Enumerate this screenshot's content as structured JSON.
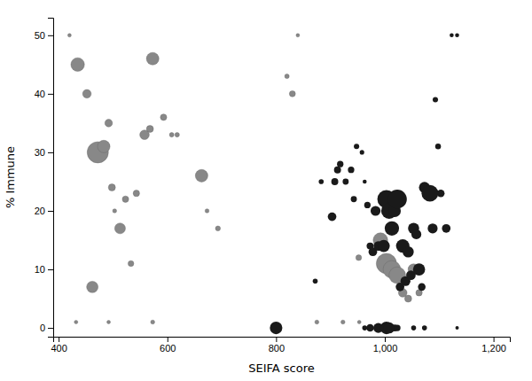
{
  "chart_data": {
    "type": "scatter",
    "xlabel": "SEIFA score",
    "ylabel": "% Immune",
    "xlim": [
      390,
      1230
    ],
    "ylim": [
      -1.5,
      53
    ],
    "xticks": [
      400,
      600,
      800,
      {
        "value": 1000,
        "label": "1,000"
      },
      {
        "value": 1200,
        "label": "1,200"
      }
    ],
    "yticks": [
      0,
      10,
      20,
      30,
      40,
      50
    ],
    "grid": false,
    "series": [
      {
        "color": "#888888",
        "x": [
          420,
          435,
          452,
          462,
          472,
          483,
          492,
          498,
          503,
          513,
          523,
          533,
          543,
          558,
          568,
          573,
          593,
          608,
          618,
          432,
          492,
          573,
          663,
          673,
          693,
          820,
          830,
          840,
          952,
          992,
          1003,
          1013,
          1023,
          1033,
          1043,
          1053,
          1063,
          875,
          923,
          953
        ],
        "values": [
          50,
          45,
          40,
          7,
          30,
          31,
          35,
          24,
          20,
          17,
          22,
          11,
          23,
          33,
          34,
          46,
          36,
          33,
          33,
          1,
          1,
          1,
          26,
          20,
          17,
          43,
          40,
          50,
          12,
          15,
          11,
          10,
          9,
          6,
          5,
          10,
          6,
          1,
          1,
          1
        ],
        "size": [
          3,
          45,
          18,
          32,
          110,
          38,
          14,
          12,
          4,
          28,
          10,
          8,
          10,
          22,
          12,
          38,
          10,
          5,
          5,
          3,
          3,
          4,
          38,
          4,
          6,
          5,
          9,
          3,
          8,
          52,
          100,
          75,
          68,
          18,
          12,
          30,
          10,
          4,
          4,
          3
        ]
      },
      {
        "color": "#1a1a1a",
        "x": [
          800,
          872,
          883,
          903,
          908,
          913,
          918,
          928,
          938,
          943,
          948,
          958,
          963,
          968,
          973,
          978,
          983,
          988,
          998,
          1003,
          1008,
          1013,
          1018,
          1023,
          1028,
          1033,
          1038,
          1043,
          1048,
          1053,
          1058,
          1063,
          1068,
          1073,
          1083,
          1088,
          1093,
          1098,
          1103,
          1113,
          1123,
          1133,
          963,
          973,
          988,
          1003,
          1008,
          1018,
          1023,
          1053,
          1073,
          1133
        ],
        "values": [
          0,
          8,
          25,
          19,
          25,
          27,
          28,
          25,
          27,
          22,
          31,
          30,
          25,
          21,
          14,
          13,
          20,
          14,
          14,
          22,
          20,
          17,
          20,
          22,
          7,
          14,
          8,
          13,
          9,
          17,
          16,
          10,
          7,
          24,
          23,
          17,
          39,
          31,
          23,
          17,
          50,
          50,
          0,
          0,
          0,
          0,
          0,
          0,
          0,
          0,
          0,
          0
        ],
        "size": [
          38,
          6,
          6,
          18,
          12,
          12,
          10,
          9,
          10,
          9,
          7,
          5,
          4,
          10,
          12,
          18,
          24,
          22,
          36,
          80,
          62,
          50,
          38,
          88,
          18,
          44,
          24,
          30,
          22,
          30,
          24,
          36,
          14,
          30,
          68,
          24,
          7,
          8,
          14,
          18,
          4,
          4,
          6,
          14,
          24,
          38,
          30,
          12,
          10,
          6,
          6,
          3
        ]
      }
    ]
  }
}
